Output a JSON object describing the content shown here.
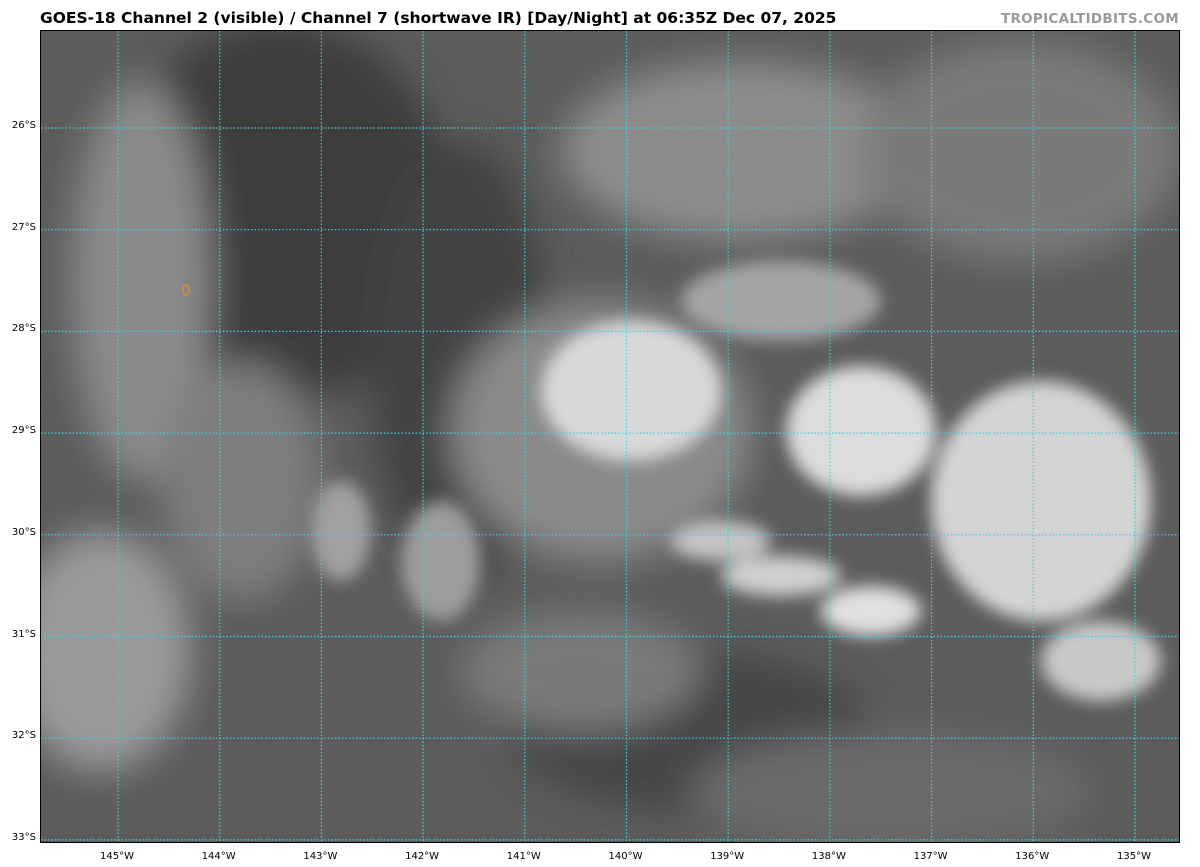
{
  "header": {
    "title": "GOES-18 Channel 2 (visible) / Channel 7 (shortwave IR) [Day/Night] at 06:35Z Dec 07, 2025",
    "credit": "TROPICALTIDBITS.COM"
  },
  "map": {
    "type": "satellite-imagery",
    "gridline_color": "#35d6d6",
    "marker_color": "#e08a3a",
    "marker_icon": "storm-center-marker",
    "longitude_labels": [
      "145°W",
      "144°W",
      "143°W",
      "142°W",
      "141°W",
      "140°W",
      "139°W",
      "138°W",
      "137°W",
      "136°W",
      "135°W"
    ],
    "latitude_labels": [
      "26°S",
      "27°S",
      "28°S",
      "29°S",
      "30°S",
      "31°S",
      "32°S",
      "33°S"
    ]
  }
}
